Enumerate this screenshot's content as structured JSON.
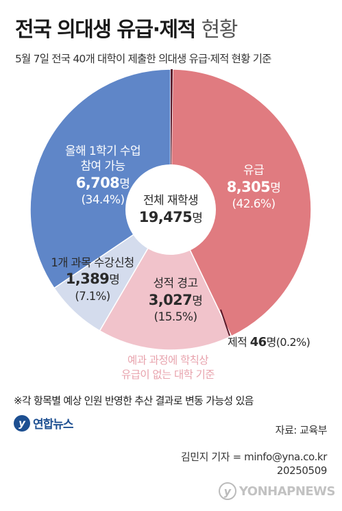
{
  "title": {
    "main": "전국 의대생 유급·제적",
    "light": "현황"
  },
  "subtitle": "5월 7일 전국 40개 대학이 제출한 의대생 유급·제적 현황 기준",
  "colors": {
    "expelled": "#5b1a2a",
    "retained": "#e07b80",
    "grades": "#f1c3cb",
    "one_course": "#d4dced",
    "participate": "#5f86c8"
  },
  "chart_data": {
    "type": "pie",
    "title": "전국 의대생 유급·제적 현황",
    "center_label": "전체 재학생",
    "center_value": "19,475",
    "center_unit": "명",
    "total": 19475,
    "slices": [
      {
        "key": "expelled",
        "name": "제적",
        "value": 46,
        "value_label": "46",
        "unit": "명",
        "percent": "(0.2%)"
      },
      {
        "key": "retained",
        "name": "유급",
        "value": 8305,
        "value_label": "8,305",
        "unit": "명",
        "percent": "(42.6%)"
      },
      {
        "key": "grades",
        "name": "성적 경고",
        "value": 3027,
        "value_label": "3,027",
        "unit": "명",
        "percent": "(15.5%)"
      },
      {
        "key": "one_course",
        "name": "1개 과목 수강신청",
        "value": 1389,
        "value_label": "1,389",
        "unit": "명",
        "percent": "(7.1%)"
      },
      {
        "key": "participate",
        "name_line1": "올해 1학기 수업",
        "name_line2": "참여 가능",
        "value": 6708,
        "value_label": "6,708",
        "unit": "명",
        "percent": "(34.4%)"
      }
    ],
    "note": [
      "예과 과정에 학칙상",
      "유급이 없는 대학 기준"
    ]
  },
  "footnote": "※각 항목별 예상 인원 반영한 추산 결과로 변동 가능성 있음",
  "logo_text": "연합뉴스",
  "source": "자료: 교육부",
  "credit": {
    "reporter": "김민지 기자 = minfo@yna.co.kr",
    "code": "20250509"
  },
  "watermark": "YONHAPNEWS"
}
